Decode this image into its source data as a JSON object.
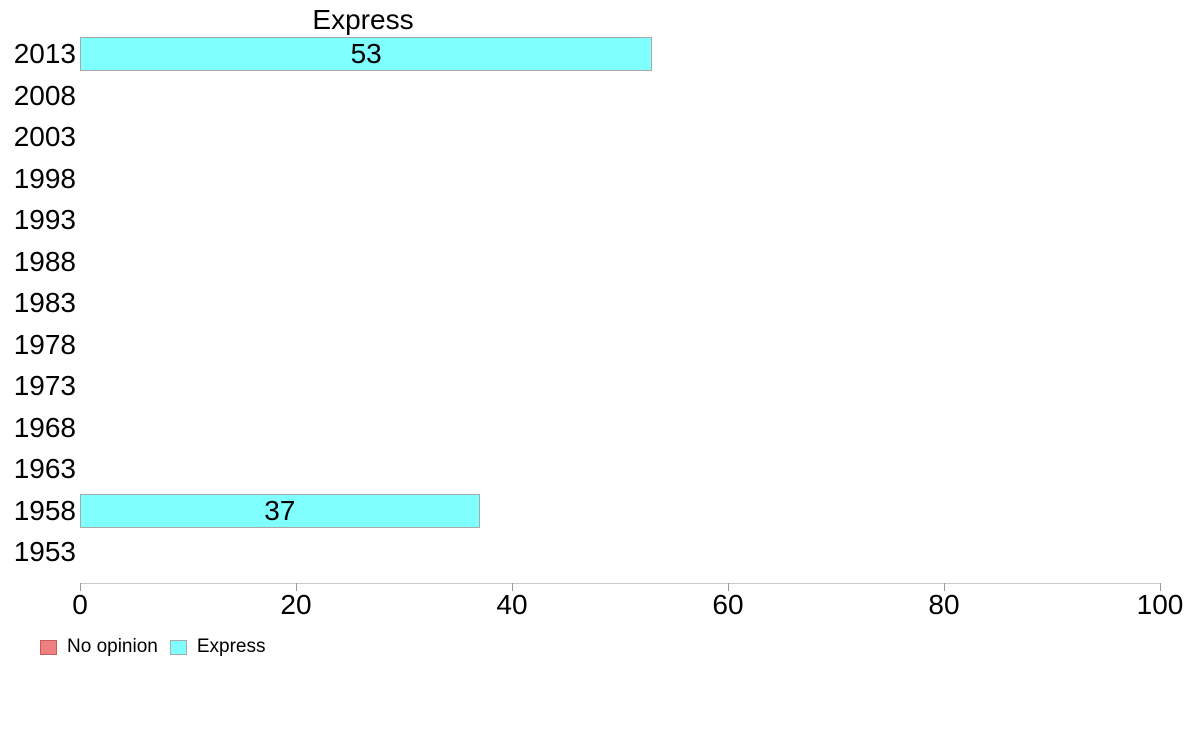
{
  "page": {
    "background": "#FFFFFF"
  },
  "chart_data": {
    "type": "bar",
    "orientation": "horizontal",
    "title": "Express",
    "categories": [
      "2013",
      "2008",
      "2003",
      "1998",
      "1993",
      "1988",
      "1983",
      "1978",
      "1973",
      "1968",
      "1963",
      "1958",
      "1953"
    ],
    "series": [
      {
        "name": "Express",
        "color": "#80FFFF",
        "border_color": "#A9A9A9",
        "values": [
          53,
          null,
          null,
          null,
          null,
          null,
          null,
          null,
          null,
          null,
          null,
          37,
          null
        ]
      }
    ],
    "bar_value_labels_shown": true,
    "xlabel": "",
    "ylabel": "",
    "xlim": [
      0,
      100
    ],
    "xticks": [
      0,
      20,
      40,
      60,
      80,
      100
    ],
    "grid": false,
    "axis_line_color": "#C9C9C9",
    "tick_mark_color": "#9B9B9B",
    "text_color": "#000000",
    "legend": {
      "position": "bottom-left",
      "items": [
        {
          "label": "No opinion",
          "color": "#F08080",
          "border_color": "#C25E5E"
        },
        {
          "label": "Express",
          "color": "#80FFFF",
          "border_color": "#A9A9A9"
        }
      ]
    }
  }
}
